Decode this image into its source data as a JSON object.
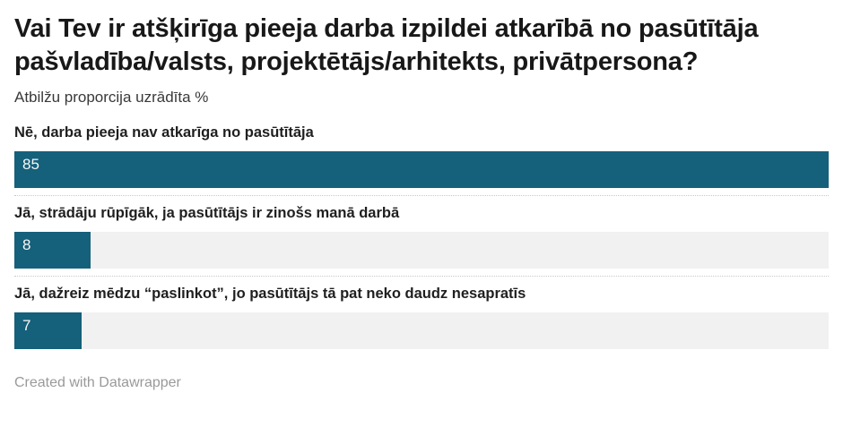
{
  "chart_data": {
    "type": "bar",
    "orientation": "horizontal",
    "title": "Vai Tev ir atšķirīga pieeja darba izpildei atkarībā no pasūtītāja pašvladība/valsts, projektētājs/arhitekts, privātpersona?",
    "subtitle": "Atbilžu proporcija uzrādīta %",
    "categories": [
      "Nē, darba pieeja nav atkarīga no pasūtītāja",
      "Jā, strādāju rūpīgāk, ja pasūtītājs ir zinošs manā darbā",
      "Jā, dažreiz mēdzu “paslinkot”, jo pasūtītājs tā pat neko daudz nesapratīs"
    ],
    "values": [
      85,
      8,
      7
    ],
    "value_unit": "%",
    "xlim": [
      0,
      85
    ],
    "grid": false,
    "legend": false,
    "value_labels_inside_bars": true,
    "bar_color": "#15607a",
    "track_color": "#f1f1f1",
    "footer": "Created with Datawrapper"
  },
  "header": {
    "title": "Vai Tev ir atšķirīga pieeja darba izpildei atkarībā no pasūtītāja pašvladība/valsts, projektētājs/arhitekts, privātpersona?",
    "subtitle": "Atbilžu proporcija uzrādīta %"
  },
  "bars": [
    {
      "label": "Nē, darba pieeja nav atkarīga no pasūtītāja",
      "value": "85"
    },
    {
      "label": "Jā, strādāju rūpīgāk, ja pasūtītājs ir zinošs manā darbā",
      "value": "8"
    },
    {
      "label": "Jā, dažreiz mēdzu “paslinkot”, jo pasūtītājs tā pat neko daudz nesapratīs",
      "value": "7"
    }
  ],
  "footer": {
    "credit": "Created with Datawrapper"
  },
  "colors": {
    "bar_fill": "#15607a",
    "bar_track": "#f1f1f1",
    "title_text": "#181818",
    "footer_text": "#9a9a9a",
    "separator": "#c9c9c9"
  }
}
